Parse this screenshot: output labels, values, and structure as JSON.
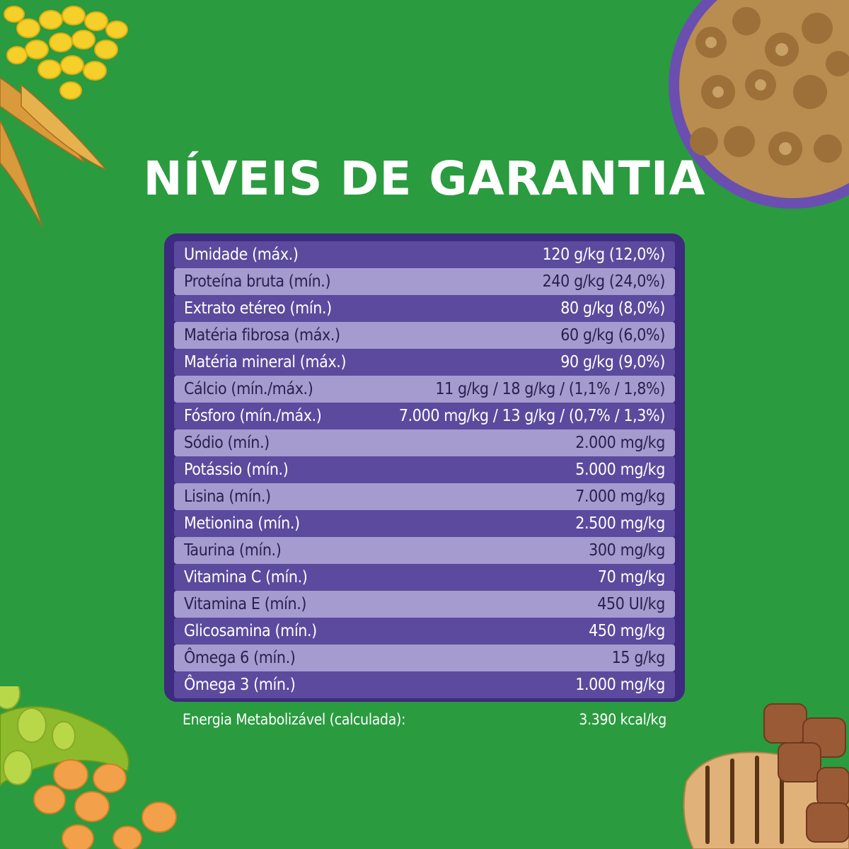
{
  "title": "NÍVEIS DE GARANTIA",
  "rows": [
    {
      "label": "Umidade (máx.)",
      "value": "120 g/kg (12,0%)"
    },
    {
      "label": "Proteína bruta (mín.)",
      "value": "240 g/kg (24,0%)"
    },
    {
      "label": "Extrato etéreo (mín.)",
      "value": "80 g/kg (8,0%)"
    },
    {
      "label": "Matéria fibrosa (máx.)",
      "value": "60 g/kg (6,0%)"
    },
    {
      "label": "Matéria mineral (máx.)",
      "value": "90 g/kg (9,0%)"
    },
    {
      "label": "Cálcio (mín./máx.)",
      "value": "11 g/kg / 18 g/kg / (1,1% / 1,8%)"
    },
    {
      "label": "Fósforo (mín./máx.)",
      "value": "7.000 mg/kg / 13 g/kg / (0,7% / 1,3%)"
    },
    {
      "label": "Sódio (mín.)",
      "value": "2.000 mg/kg"
    },
    {
      "label": "Potássio (mín.)",
      "value": "5.000 mg/kg"
    },
    {
      "label": "Lisina (mín.)",
      "value": "7.000 mg/kg"
    },
    {
      "label": "Metionina (mín.)",
      "value": "2.500 mg/kg"
    },
    {
      "label": "Taurina (mín.)",
      "value": "300 mg/kg"
    },
    {
      "label": "Vitamina C (mín.)",
      "value": "70 mg/kg"
    },
    {
      "label": "Vitamina E (mín.)",
      "value": "450 UI/kg"
    },
    {
      "label": "Glicosamina (mín.)",
      "value": "450 mg/kg"
    },
    {
      "label": "Ômega 6 (mín.)",
      "value": "15 g/kg"
    },
    {
      "label": "Ômega 3 (mín.)",
      "value": "1.000 mg/kg"
    }
  ],
  "energy": {
    "label": "Energia Metabolizável (calculada):",
    "value": "3.390 kcal/kg"
  },
  "colors": {
    "background": "#2a9b3f",
    "table_border": "#3e2a7e",
    "row_dark": "#5b4a9d",
    "row_light": "#a69bcf",
    "title": "#ffffff"
  },
  "decorations": [
    "corn-and-wheat-image",
    "kibble-bowl-image",
    "soybeans-image",
    "grilled-meat-image"
  ]
}
